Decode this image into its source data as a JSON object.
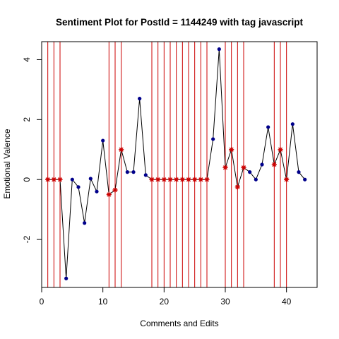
{
  "chart_data": {
    "type": "line",
    "title": "Sentiment Plot for PostId =  1144249  with tag  javascript",
    "xlabel": "Comments and Edits",
    "ylabel": "Emotional Valence",
    "xlim": [
      0,
      45
    ],
    "ylim": [
      -3.6,
      4.6
    ],
    "x_ticks": [
      0,
      10,
      20,
      30,
      40
    ],
    "y_ticks": [
      -2,
      0,
      2,
      4
    ],
    "grid": false,
    "colors": {
      "line": "#000000",
      "comment_point": "#00008B",
      "edit_marker": "#CC0000",
      "edit_vline": "#CC0000"
    },
    "series": [
      {
        "x": [
          1,
          2,
          3,
          4,
          5,
          6,
          7,
          8,
          9,
          10,
          11,
          12,
          13,
          14,
          15,
          16,
          17,
          18,
          19,
          20,
          21,
          22,
          23,
          24,
          25,
          26,
          27,
          28,
          29,
          30,
          31,
          32,
          33,
          34,
          35,
          36,
          37,
          38,
          39,
          40,
          41,
          42,
          43
        ],
        "y": [
          0,
          0,
          0,
          -3.3,
          0,
          -0.25,
          -1.45,
          0.03,
          -0.4,
          1.3,
          -0.5,
          -0.35,
          1.0,
          0.25,
          0.25,
          2.7,
          0.15,
          0,
          0,
          0,
          0,
          0,
          0,
          0,
          0,
          0,
          0,
          1.35,
          4.35,
          0.4,
          1.0,
          -0.25,
          0.4,
          0.25,
          0,
          0.5,
          1.75,
          0.5,
          1.0,
          0,
          1.85,
          0.25,
          0
        ],
        "is_edit": [
          1,
          1,
          1,
          0,
          0,
          0,
          0,
          0,
          0,
          0,
          1,
          1,
          1,
          0,
          0,
          0,
          0,
          1,
          1,
          1,
          1,
          1,
          1,
          1,
          1,
          1,
          1,
          0,
          0,
          1,
          1,
          1,
          1,
          0,
          0,
          0,
          0,
          1,
          1,
          1,
          0,
          0,
          0
        ]
      }
    ]
  }
}
